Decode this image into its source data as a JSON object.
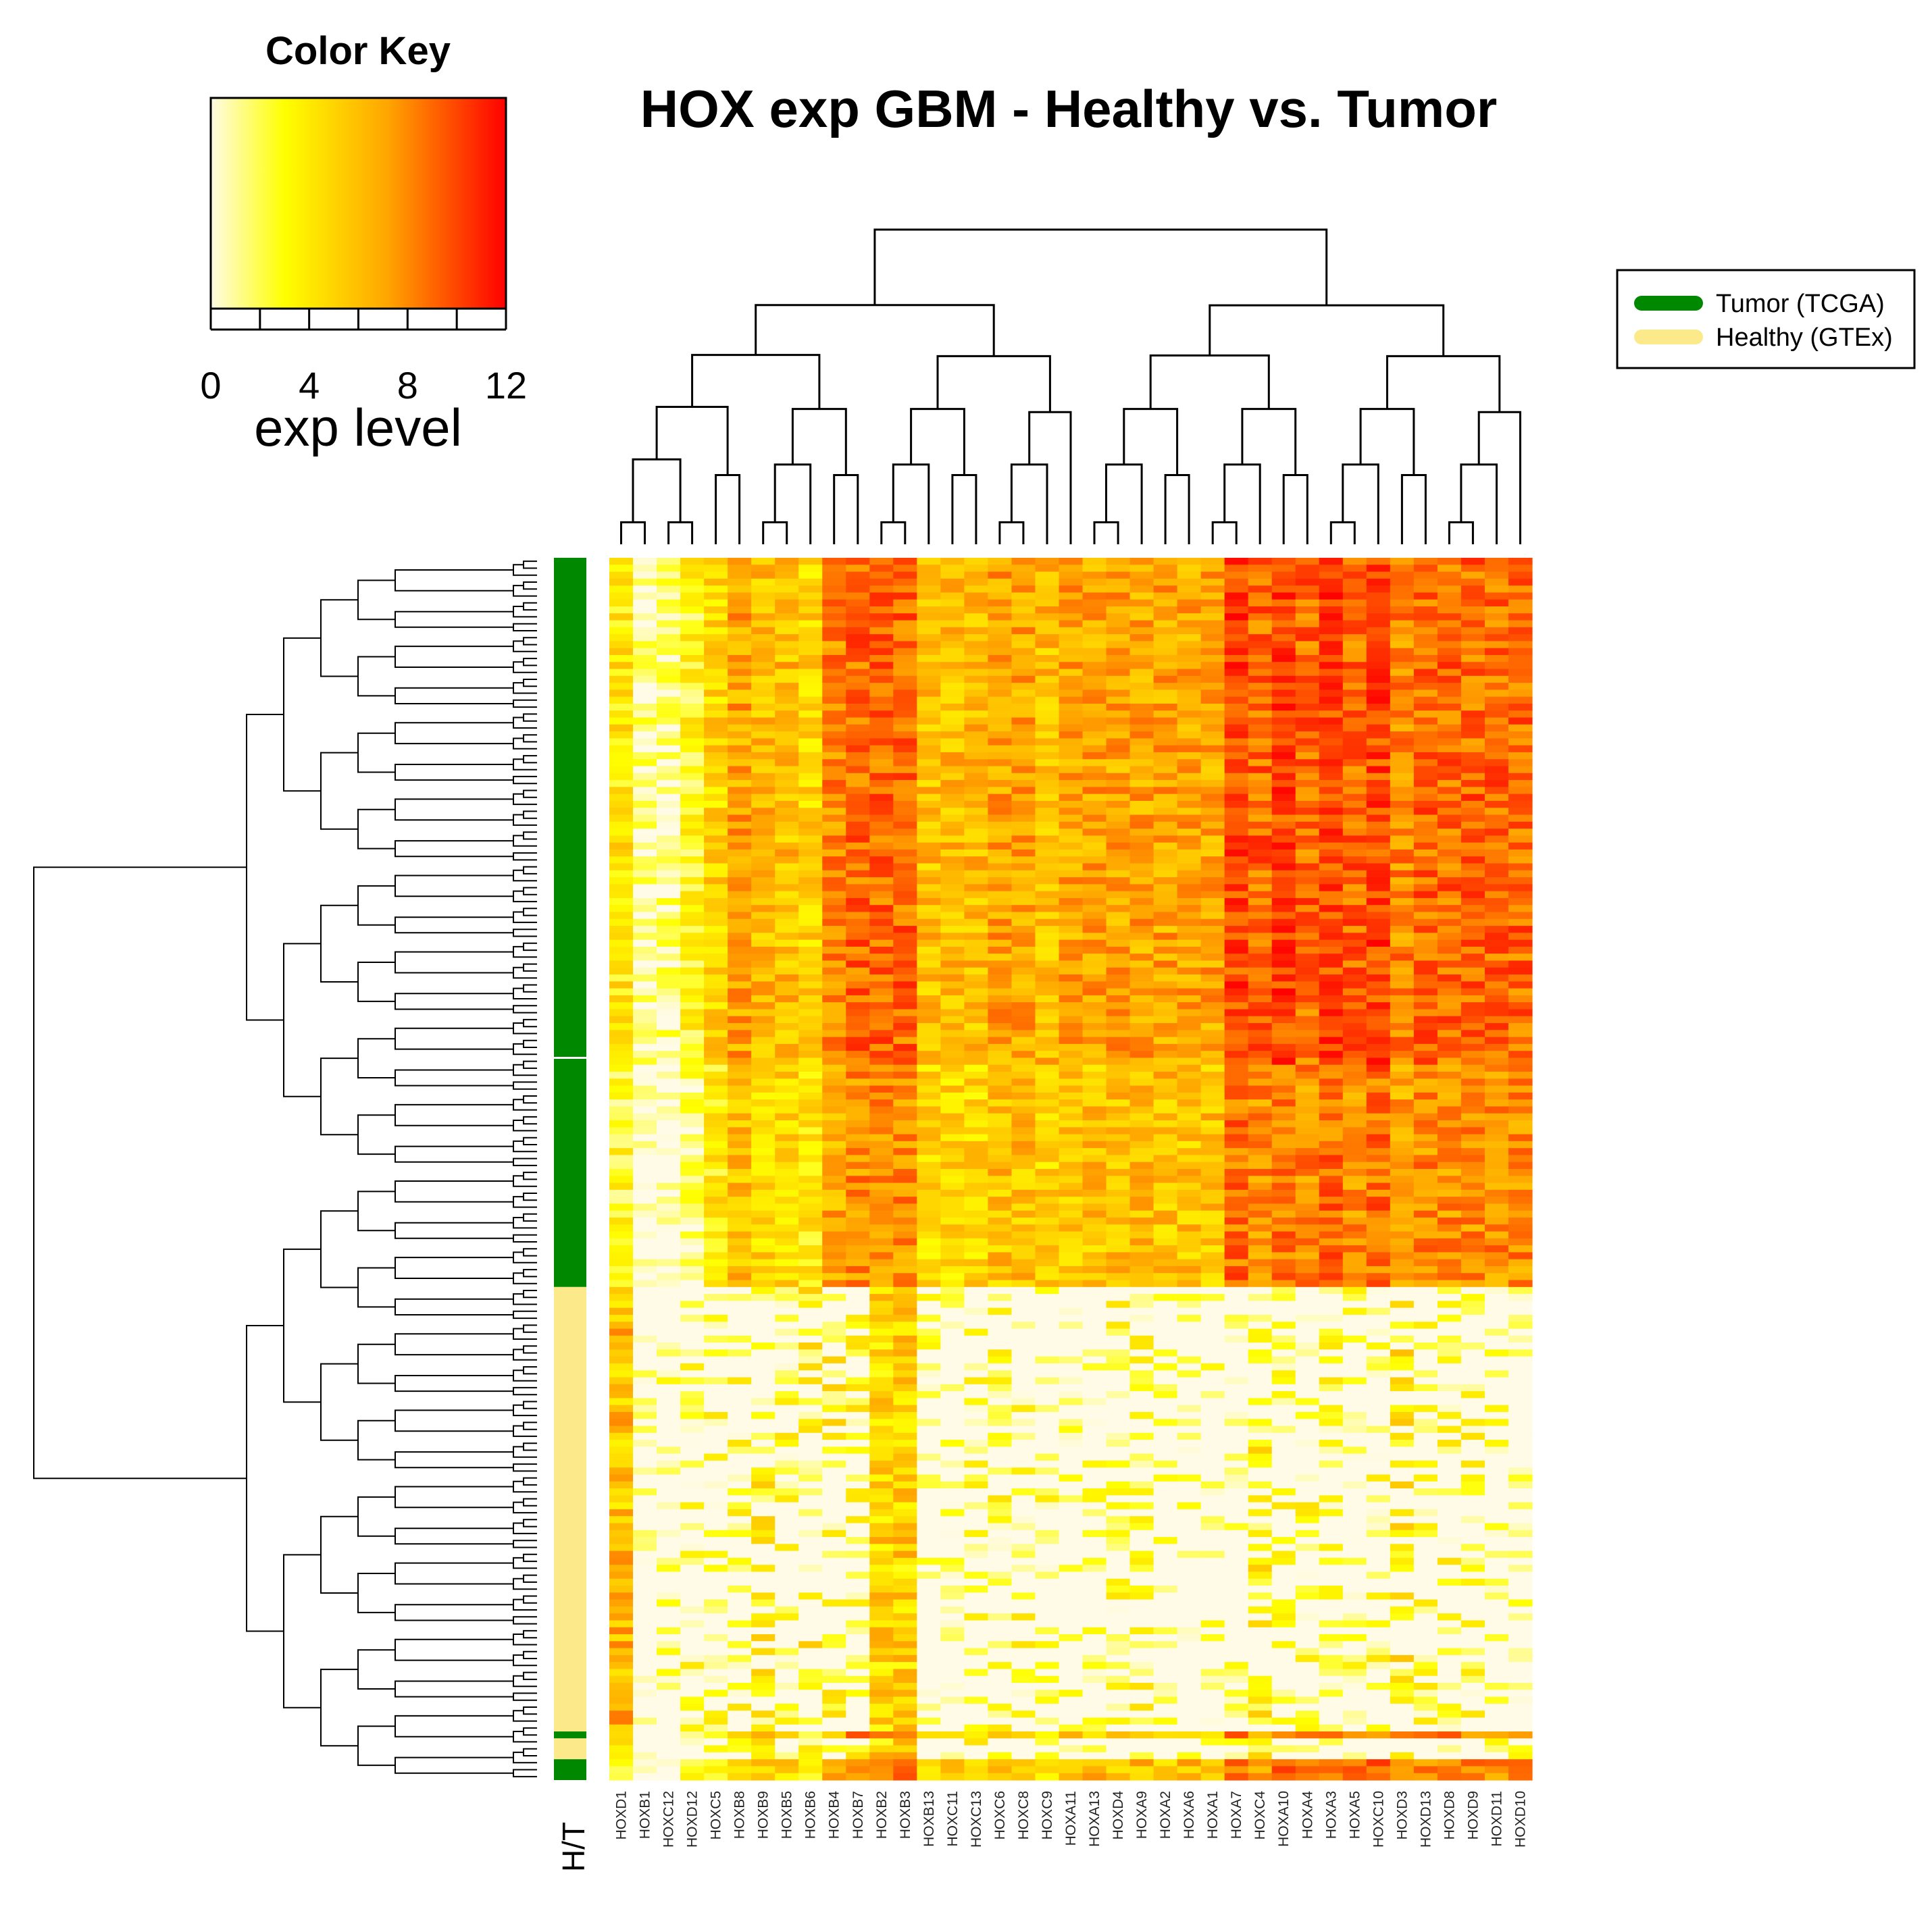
{
  "chart_data": {
    "type": "heatmap",
    "title": "HOX exp GBM - Healthy vs. Tumor",
    "color_key": {
      "title": "Color Key",
      "xlabel": "exp level",
      "range": [
        0,
        12
      ],
      "ticks": [
        0,
        2,
        4,
        6,
        8,
        10,
        12
      ],
      "tick_labels": [
        "0",
        "4",
        "8",
        "12"
      ],
      "colors": [
        "#fffbe6",
        "#ffff00",
        "#ffa500",
        "#ff0000"
      ]
    },
    "legend": {
      "placement": "top-right",
      "entries": [
        {
          "label": "Tumor (TCGA)",
          "color": "#008800"
        },
        {
          "label": "Healthy (GTEx)",
          "color": "#fce98a"
        }
      ]
    },
    "side_bar_label": "H/T",
    "genes": [
      "HOXD1",
      "HOXB1",
      "HOXC12",
      "HOXD12",
      "HOXC5",
      "HOXB8",
      "HOXB9",
      "HOXB5",
      "HOXB6",
      "HOXB4",
      "HOXB7",
      "HOXB2",
      "HOXB3",
      "HOXB13",
      "HOXC11",
      "HOXC13",
      "HOXC6",
      "HOXC8",
      "HOXC9",
      "HOXA11",
      "HOXA13",
      "HOXD4",
      "HOXA9",
      "HOXA2",
      "HOXA6",
      "HOXA1",
      "HOXA7",
      "HOXC4",
      "HOXA10",
      "HOXA4",
      "HOXA3",
      "HOXA5",
      "HOXC10",
      "HOXD3",
      "HOXD13",
      "HOXD8",
      "HOXD9",
      "HOXD11",
      "HOXD10"
    ],
    "row_groups": [
      {
        "group": "Tumor (TCGA)",
        "rows": 72
      },
      {
        "group": "Tumor (TCGA)",
        "rows": 33
      },
      {
        "group": "Healthy (GTEx)",
        "rows": 64
      },
      {
        "group": "Tumor (TCGA)",
        "rows": 1
      },
      {
        "group": "Healthy (GTEx)",
        "rows": 3
      },
      {
        "group": "Tumor (TCGA)",
        "rows": 3
      }
    ],
    "tumor_mean_exp": [
      4,
      1,
      1,
      3,
      5,
      7,
      6,
      6,
      5,
      8,
      9,
      9,
      9,
      6,
      6,
      6,
      7,
      7,
      6,
      7,
      7,
      7,
      7,
      7,
      7,
      7,
      10,
      9,
      10,
      9,
      10,
      9,
      10,
      8,
      9,
      9,
      9,
      9,
      9
    ],
    "healthy_mean_exp": [
      6,
      0,
      1,
      2,
      2,
      2,
      3,
      2,
      3,
      3,
      3,
      5,
      5,
      1,
      1,
      2,
      2,
      2,
      2,
      1,
      1,
      2,
      2,
      1,
      1,
      1,
      1,
      3,
      2,
      2,
      2,
      2,
      2,
      4,
      2,
      2,
      2,
      1,
      1
    ]
  }
}
